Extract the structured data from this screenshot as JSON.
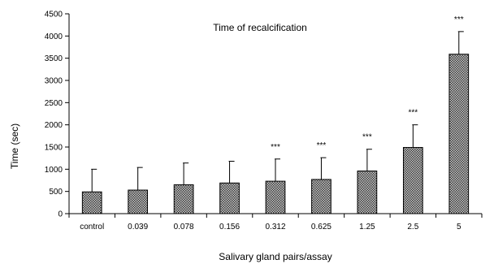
{
  "chart_data": {
    "type": "bar",
    "title": "Time of recalcification",
    "xlabel": "Salivary gland pairs/assay",
    "ylabel": "Time (sec)",
    "categories": [
      "control",
      "0.039",
      "0.078",
      "0.156",
      "0.312",
      "0.625",
      "1.25",
      "2.5",
      "5"
    ],
    "series": [
      {
        "values": [
          490,
          530,
          650,
          690,
          730,
          770,
          960,
          1490,
          3590
        ],
        "error_upper": [
          1000,
          1040,
          1140,
          1180,
          1230,
          1260,
          1450,
          2000,
          4100
        ],
        "significance": [
          "",
          "",
          "",
          "",
          "***",
          "***",
          "***",
          "***",
          "***"
        ]
      }
    ],
    "ylim": [
      0,
      4500
    ],
    "yticks": [
      0,
      500,
      1000,
      1500,
      2000,
      2500,
      3000,
      3500,
      4000,
      4500
    ],
    "grid": false,
    "legend": "none",
    "colors": {
      "bar_fill": "#9a9a9a",
      "bar_stroke": "#000000",
      "axis": "#000000"
    }
  }
}
